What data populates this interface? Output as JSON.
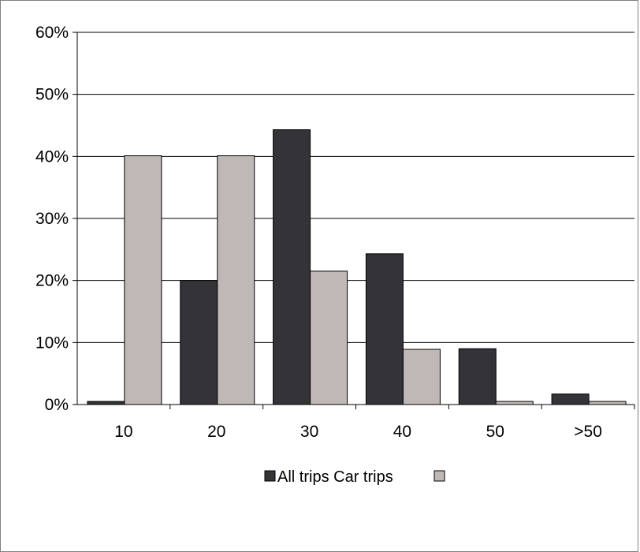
{
  "chart_data": {
    "type": "bar",
    "categories": [
      "10",
      "20",
      "30",
      "40",
      "50",
      ">50"
    ],
    "series": [
      {
        "name": "All trips",
        "color": "#333338",
        "values": [
          0.5,
          20.0,
          44.3,
          24.3,
          9.0,
          1.7
        ]
      },
      {
        "name": "Car trips",
        "color": "#c0b8b6",
        "values": [
          40.1,
          40.1,
          21.5,
          8.9,
          0.5,
          0.5
        ]
      }
    ],
    "y_ticks": [
      "0%",
      "10%",
      "20%",
      "30%",
      "40%",
      "50%",
      "60%"
    ],
    "ylim": [
      0,
      60
    ],
    "grid": true,
    "legend": {
      "position": "bottom",
      "text": "All trips Car trips"
    }
  }
}
